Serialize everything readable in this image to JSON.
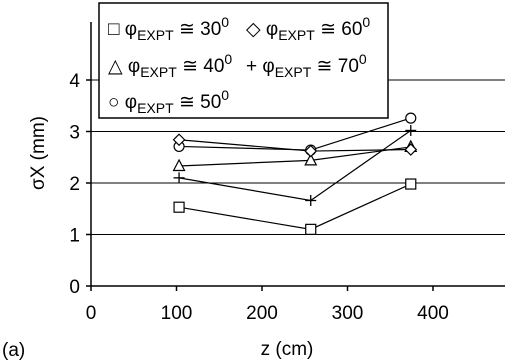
{
  "panel_label": "(a)",
  "chart_data": {
    "type": "line",
    "title": "",
    "xlabel": "z (cm)",
    "ylabel": "σX (mm)",
    "xlim": [
      0,
      450
    ],
    "ylim": [
      0,
      5
    ],
    "x_ticks": [
      0,
      100,
      200,
      300,
      400
    ],
    "y_ticks": [
      0,
      1,
      2,
      3,
      4
    ],
    "grid": "horizontal",
    "legend_position": "top-left",
    "series": [
      {
        "name": "φEXPT ≅ 30⁰",
        "marker": "square",
        "x": [
          103,
          257,
          374
        ],
        "y": [
          1.53,
          1.1,
          1.98
        ]
      },
      {
        "name": "φEXPT ≅ 40⁰",
        "marker": "triangle",
        "x": [
          103,
          257,
          374
        ],
        "y": [
          2.33,
          2.44,
          2.7
        ]
      },
      {
        "name": "φEXPT ≅ 50⁰",
        "marker": "circle",
        "x": [
          103,
          257,
          374
        ],
        "y": [
          2.71,
          2.64,
          3.26
        ]
      },
      {
        "name": "φEXPT ≅ 60⁰",
        "marker": "diamond",
        "x": [
          103,
          257,
          374
        ],
        "y": [
          2.84,
          2.62,
          2.65
        ]
      },
      {
        "name": "φEXPT ≅ 70⁰",
        "marker": "plus",
        "x": [
          103,
          257,
          374
        ],
        "y": [
          2.1,
          1.66,
          3.02
        ]
      }
    ],
    "legend_entries": [
      {
        "symbol": "□",
        "base": "φ",
        "sub": "EXPT",
        "rel": " ≅ 30",
        "sup": "0"
      },
      {
        "symbol": "◇",
        "base": "φ",
        "sub": "EXPT",
        "rel": " ≅ 60",
        "sup": "0"
      },
      {
        "symbol": "△",
        "base": "φ",
        "sub": "EXPT",
        "rel": " ≅ 40",
        "sup": "0"
      },
      {
        "symbol": "+",
        "base": "φ",
        "sub": "EXPT",
        "rel": " ≅ 70",
        "sup": "0"
      },
      {
        "symbol": "○",
        "base": "φ",
        "sub": "EXPT",
        "rel": " ≅ 50",
        "sup": "0"
      }
    ]
  }
}
